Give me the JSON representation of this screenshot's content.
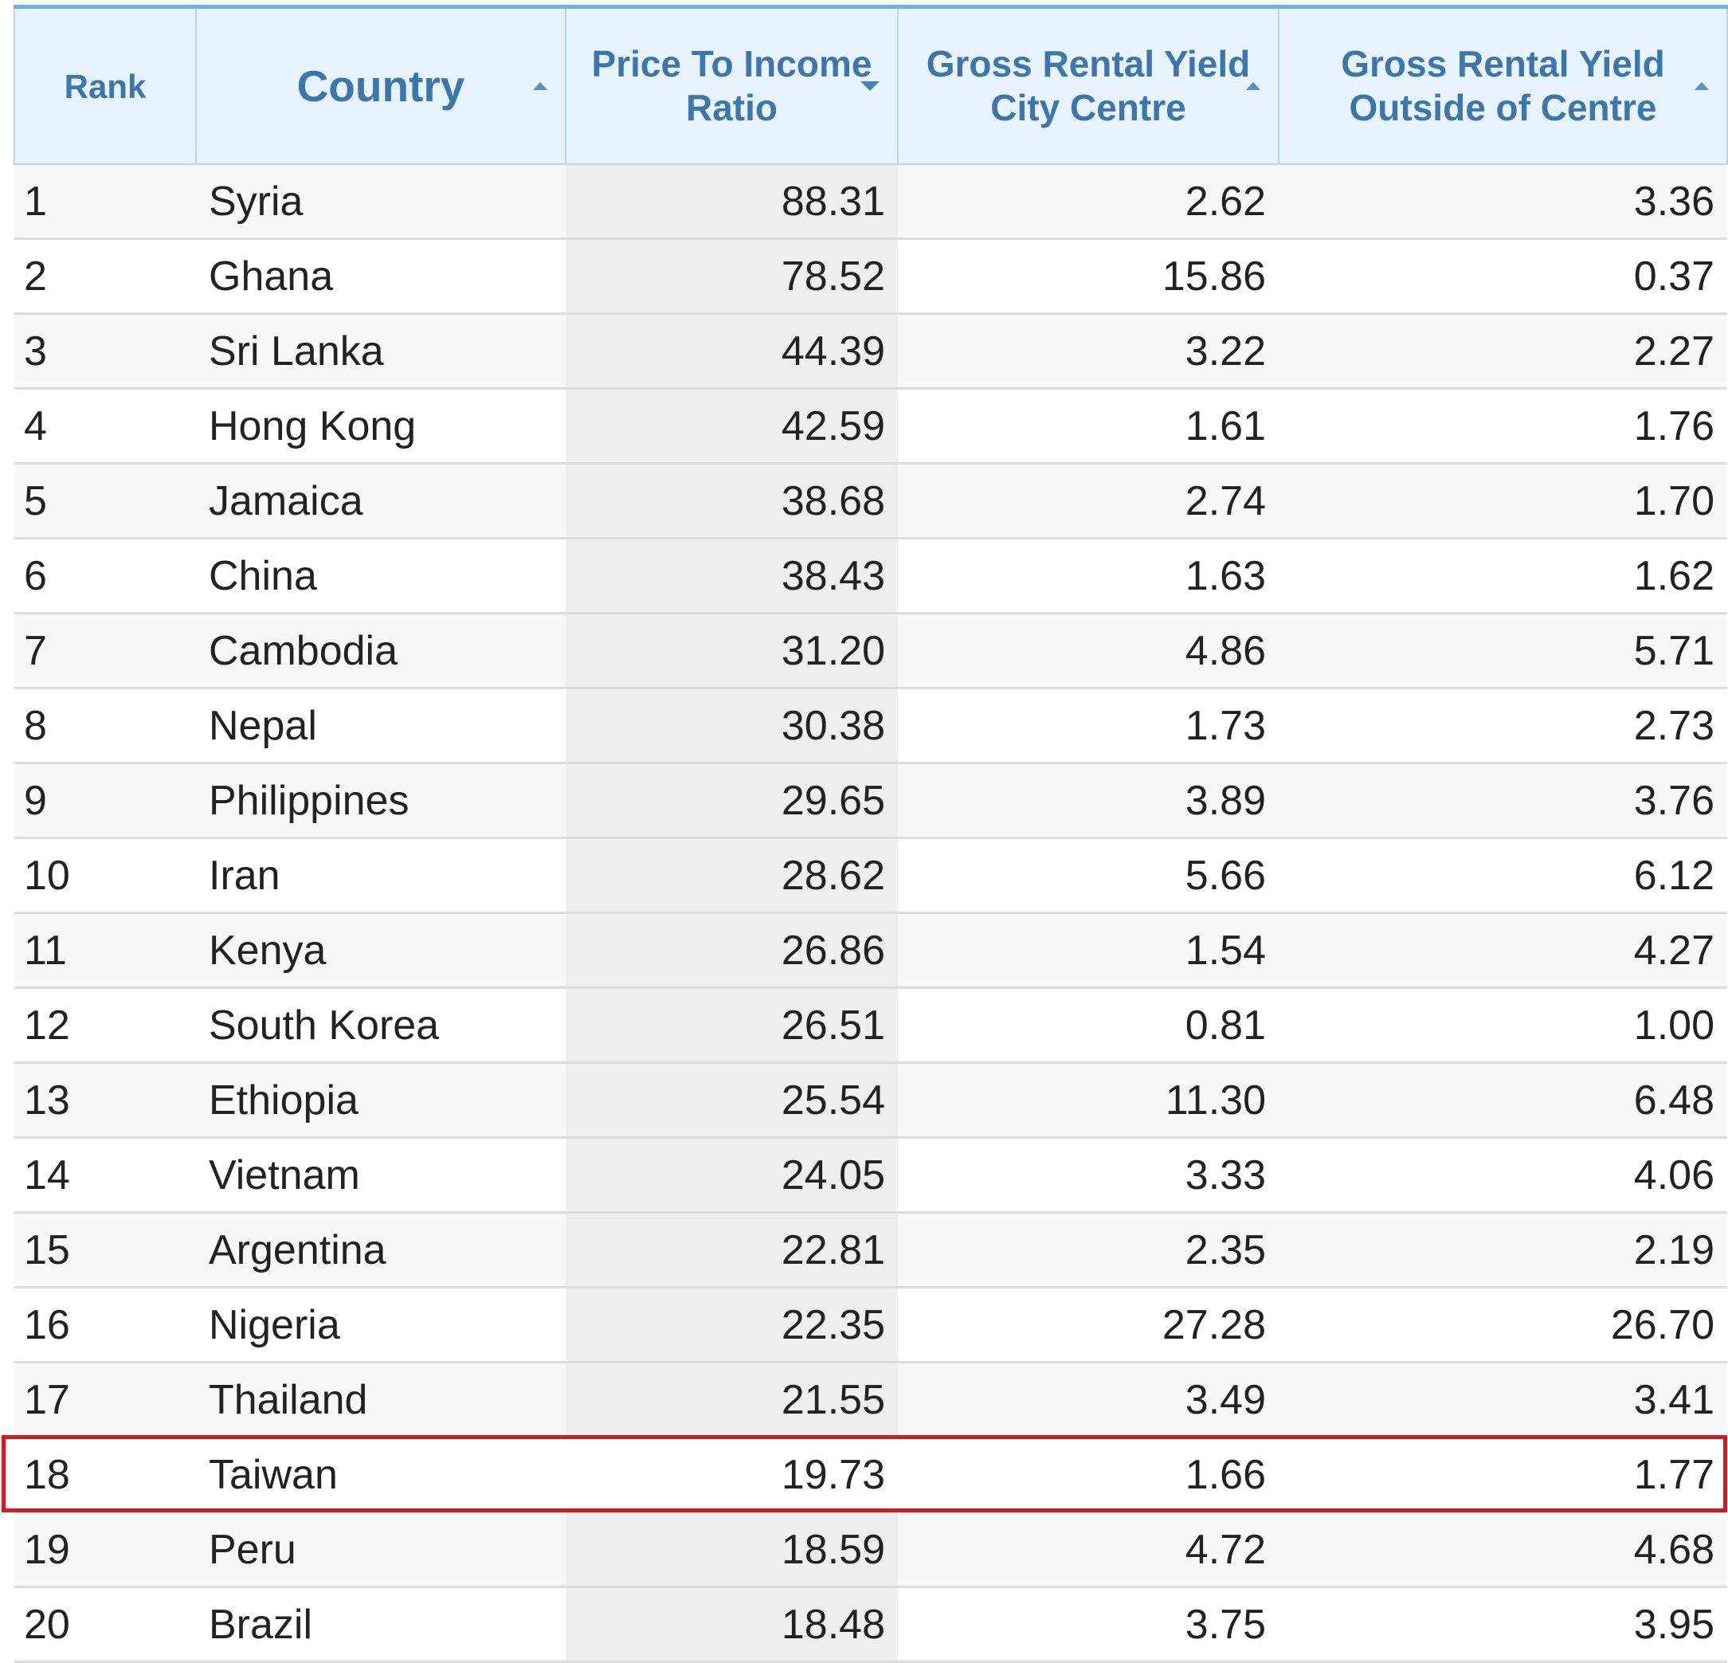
{
  "headers": {
    "rank": "Rank",
    "country": "Country",
    "price_to_income": "Price To Income Ratio",
    "yield_city": "Gross Rental Yield City Centre",
    "yield_outside": "Gross Rental Yield Outside of Centre"
  },
  "sort": {
    "active_column": "price_to_income",
    "active_direction": "descending"
  },
  "highlighted_rank": "18",
  "accent_colors": {
    "header_text": "#3d76ad",
    "header_bg": "#e7f3fd",
    "highlight_border": "#e0141e"
  },
  "rows": [
    {
      "rank": "1",
      "country": "Syria",
      "pti": "88.31",
      "city": "2.62",
      "outside": "3.36"
    },
    {
      "rank": "2",
      "country": "Ghana",
      "pti": "78.52",
      "city": "15.86",
      "outside": "0.37"
    },
    {
      "rank": "3",
      "country": "Sri Lanka",
      "pti": "44.39",
      "city": "3.22",
      "outside": "2.27"
    },
    {
      "rank": "4",
      "country": "Hong Kong",
      "pti": "42.59",
      "city": "1.61",
      "outside": "1.76"
    },
    {
      "rank": "5",
      "country": "Jamaica",
      "pti": "38.68",
      "city": "2.74",
      "outside": "1.70"
    },
    {
      "rank": "6",
      "country": "China",
      "pti": "38.43",
      "city": "1.63",
      "outside": "1.62"
    },
    {
      "rank": "7",
      "country": "Cambodia",
      "pti": "31.20",
      "city": "4.86",
      "outside": "5.71"
    },
    {
      "rank": "8",
      "country": "Nepal",
      "pti": "30.38",
      "city": "1.73",
      "outside": "2.73"
    },
    {
      "rank": "9",
      "country": "Philippines",
      "pti": "29.65",
      "city": "3.89",
      "outside": "3.76"
    },
    {
      "rank": "10",
      "country": "Iran",
      "pti": "28.62",
      "city": "5.66",
      "outside": "6.12"
    },
    {
      "rank": "11",
      "country": "Kenya",
      "pti": "26.86",
      "city": "1.54",
      "outside": "4.27"
    },
    {
      "rank": "12",
      "country": "South Korea",
      "pti": "26.51",
      "city": "0.81",
      "outside": "1.00"
    },
    {
      "rank": "13",
      "country": "Ethiopia",
      "pti": "25.54",
      "city": "11.30",
      "outside": "6.48"
    },
    {
      "rank": "14",
      "country": "Vietnam",
      "pti": "24.05",
      "city": "3.33",
      "outside": "4.06"
    },
    {
      "rank": "15",
      "country": "Argentina",
      "pti": "22.81",
      "city": "2.35",
      "outside": "2.19"
    },
    {
      "rank": "16",
      "country": "Nigeria",
      "pti": "22.35",
      "city": "27.28",
      "outside": "26.70"
    },
    {
      "rank": "17",
      "country": "Thailand",
      "pti": "21.55",
      "city": "3.49",
      "outside": "3.41"
    },
    {
      "rank": "18",
      "country": "Taiwan",
      "pti": "19.73",
      "city": "1.66",
      "outside": "1.77"
    },
    {
      "rank": "19",
      "country": "Peru",
      "pti": "18.59",
      "city": "4.72",
      "outside": "4.68"
    },
    {
      "rank": "20",
      "country": "Brazil",
      "pti": "18.48",
      "city": "3.75",
      "outside": "3.95"
    }
  ]
}
